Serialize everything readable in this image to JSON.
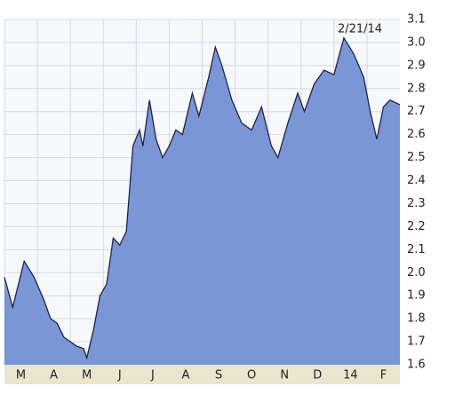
{
  "chart_data": {
    "type": "area",
    "annotation": "2/21/14",
    "x": [
      0,
      0.25,
      0.6,
      0.9,
      1.2,
      1.4,
      1.6,
      1.8,
      2.0,
      2.2,
      2.4,
      2.5,
      2.7,
      2.9,
      3.1,
      3.3,
      3.5,
      3.7,
      3.9,
      4.1,
      4.2,
      4.4,
      4.6,
      4.8,
      5.0,
      5.2,
      5.4,
      5.7,
      5.9,
      6.2,
      6.4,
      6.6,
      6.9,
      7.2,
      7.5,
      7.8,
      8.1,
      8.3,
      8.6,
      8.9,
      9.1,
      9.4,
      9.7,
      10.0,
      10.3,
      10.6,
      10.9,
      11.1,
      11.3,
      11.5,
      11.7,
      12.0
    ],
    "values": [
      1.98,
      1.85,
      2.05,
      1.98,
      1.88,
      1.8,
      1.78,
      1.72,
      1.7,
      1.68,
      1.67,
      1.63,
      1.75,
      1.9,
      1.95,
      2.15,
      2.12,
      2.18,
      2.55,
      2.62,
      2.55,
      2.75,
      2.58,
      2.5,
      2.55,
      2.62,
      2.6,
      2.78,
      2.68,
      2.85,
      2.98,
      2.9,
      2.75,
      2.65,
      2.62,
      2.72,
      2.55,
      2.5,
      2.65,
      2.78,
      2.7,
      2.82,
      2.88,
      2.86,
      3.02,
      2.95,
      2.85,
      2.7,
      2.58,
      2.72,
      2.75,
      2.73
    ],
    "color": "#7b96d4",
    "line_color": "#1c2350",
    "xlim": [
      0,
      12
    ],
    "xticks": [
      {
        "value": 0.5,
        "label": "M"
      },
      {
        "value": 1.5,
        "label": "A"
      },
      {
        "value": 2.5,
        "label": "M"
      },
      {
        "value": 3.5,
        "label": "J"
      },
      {
        "value": 4.5,
        "label": "J"
      },
      {
        "value": 5.5,
        "label": "A"
      },
      {
        "value": 6.5,
        "label": "S"
      },
      {
        "value": 7.5,
        "label": "O"
      },
      {
        "value": 8.5,
        "label": "N"
      },
      {
        "value": 9.5,
        "label": "D"
      },
      {
        "value": 10.5,
        "label": "14"
      },
      {
        "value": 11.5,
        "label": "F"
      }
    ],
    "ylim": [
      1.6,
      3.1
    ],
    "yticks": [
      1.6,
      1.7,
      1.8,
      1.9,
      {
        "value": 2.0,
        "label": "2.0"
      },
      2.1,
      2.2,
      2.3,
      2.4,
      2.5,
      2.6,
      2.7,
      2.8,
      2.9,
      {
        "value": 3.0,
        "label": "3.0"
      },
      3.1
    ],
    "grid": true
  }
}
